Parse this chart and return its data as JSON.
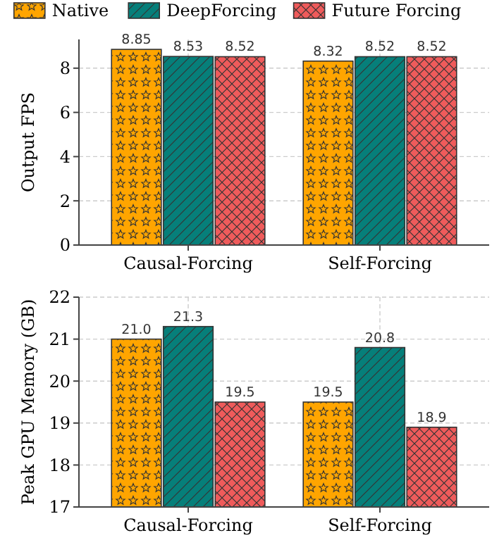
{
  "chart_data": [
    {
      "type": "bar",
      "categories": [
        "Causal-Forcing",
        "Self-Forcing"
      ],
      "ylabel": "Output FPS",
      "ylim": [
        0,
        9.3
      ],
      "yticks": [
        0,
        2,
        4,
        6,
        8
      ],
      "grid": true,
      "legend": "top",
      "data_labels": true,
      "series": [
        {
          "name": "Native",
          "color": "#ffa500",
          "values": [
            8.85,
            8.32
          ]
        },
        {
          "name": "DeepForcing",
          "color": "#067f7a",
          "values": [
            8.53,
            8.52
          ]
        },
        {
          "name": "Future Forcing",
          "color": "#ef5b5b",
          "values": [
            8.52,
            8.52
          ]
        }
      ]
    },
    {
      "type": "bar",
      "categories": [
        "Causal-Forcing",
        "Self-Forcing"
      ],
      "ylabel": "Peak GPU Memory (GB)",
      "ylim": [
        17,
        22
      ],
      "yticks": [
        17,
        18,
        19,
        20,
        21,
        22
      ],
      "grid": true,
      "series": [
        {
          "color": "#ffa500",
          "values": [
            21.0,
            19.5
          ],
          "value_labels": [
            "21.0",
            "19.5"
          ]
        },
        {
          "color": "#067f7a",
          "values": [
            21.3,
            20.8
          ],
          "value_labels": [
            "21.3",
            "20.8"
          ]
        },
        {
          "color": "#ef5b5b",
          "values": [
            19.5,
            18.9
          ],
          "value_labels": [
            "19.5",
            "18.9"
          ]
        }
      ]
    }
  ]
}
